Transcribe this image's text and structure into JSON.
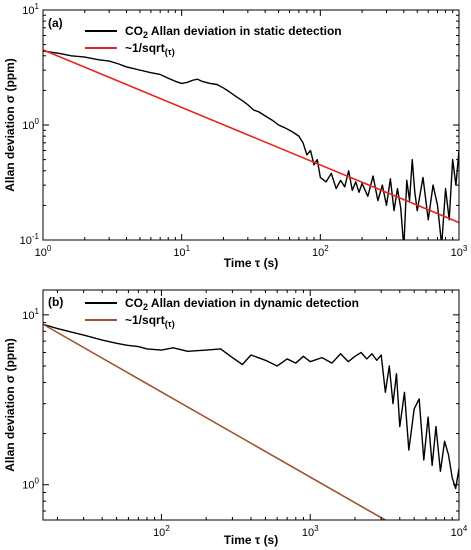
{
  "chart_data": [
    {
      "type": "line",
      "panel_label": "(a)",
      "xlabel": "Time τ (s)",
      "ylabel": "Allan deviation σ (ppm)",
      "xscale": "log",
      "yscale": "log",
      "xlim": [
        1,
        1000
      ],
      "ylim": [
        0.1,
        10
      ],
      "x_major_ticks": [
        {
          "value": 1,
          "base": "10",
          "exp": "0"
        },
        {
          "value": 10,
          "base": "10",
          "exp": "1"
        },
        {
          "value": 100,
          "base": "10",
          "exp": "2"
        },
        {
          "value": 1000,
          "base": "10",
          "exp": "3"
        }
      ],
      "y_major_ticks": [
        {
          "value": 0.1,
          "base": "10",
          "exp": "-1"
        },
        {
          "value": 1,
          "base": "10",
          "exp": "0"
        },
        {
          "value": 10,
          "base": "10",
          "exp": "1"
        }
      ],
      "grid": false,
      "legend_position": "top-right",
      "series": [
        {
          "name": "CO₂ Allan deviation in static detection",
          "legend_parts": {
            "pre": "CO",
            "sub": "2",
            "post": " Allan deviation in static detection"
          },
          "color": "#000000",
          "x": [
            1,
            1.3,
            1.6,
            2,
            2.5,
            3,
            3.5,
            4,
            5,
            6,
            7,
            8,
            9,
            10,
            11,
            12,
            13,
            14,
            16,
            18,
            20,
            22,
            25,
            28,
            30,
            33,
            36,
            40,
            45,
            50,
            55,
            60,
            65,
            70,
            75,
            80,
            85,
            90,
            95,
            100,
            110,
            120,
            130,
            140,
            150,
            160,
            170,
            180,
            190,
            200,
            220,
            240,
            260,
            280,
            300,
            320,
            340,
            360,
            380,
            400,
            420,
            440,
            460,
            480,
            500,
            550,
            600,
            650,
            700,
            750,
            800,
            850,
            900,
            950,
            1000
          ],
          "y": [
            4.4,
            4.2,
            4.0,
            3.9,
            3.7,
            3.6,
            3.4,
            3.2,
            3.0,
            2.85,
            2.75,
            2.55,
            2.4,
            2.3,
            2.35,
            2.45,
            2.5,
            2.4,
            2.3,
            2.25,
            2.1,
            1.95,
            1.75,
            1.6,
            1.5,
            1.35,
            1.3,
            1.2,
            1.1,
            1.0,
            0.95,
            0.9,
            0.85,
            0.8,
            0.7,
            0.55,
            0.6,
            0.45,
            0.5,
            0.35,
            0.32,
            0.38,
            0.28,
            0.33,
            0.29,
            0.4,
            0.27,
            0.32,
            0.26,
            0.31,
            0.24,
            0.36,
            0.22,
            0.3,
            0.2,
            0.34,
            0.18,
            0.28,
            0.19,
            0.085,
            0.33,
            0.22,
            0.5,
            0.26,
            0.18,
            0.35,
            0.15,
            0.3,
            0.2,
            0.09,
            0.28,
            0.15,
            0.5,
            0.3,
            0.6
          ]
        },
        {
          "name": "~1/sqrt(τ)",
          "legend_parts": {
            "pre": "~1/sqrt",
            "sub": "(τ)",
            "post": ""
          },
          "color": "#e8231f",
          "x": [
            1,
            1000
          ],
          "y": [
            4.5,
            0.142
          ]
        }
      ]
    },
    {
      "type": "line",
      "panel_label": "(b)",
      "xlabel": "Time τ (s)",
      "ylabel": "Allan deviation σ (ppm)",
      "xscale": "log",
      "yscale": "log",
      "xlim": [
        16,
        10000
      ],
      "ylim": [
        0.62,
        14
      ],
      "x_major_ticks": [
        {
          "value": 100,
          "base": "10",
          "exp": "2"
        },
        {
          "value": 1000,
          "base": "10",
          "exp": "3"
        },
        {
          "value": 10000,
          "base": "10",
          "exp": "4"
        }
      ],
      "y_major_ticks": [
        {
          "value": 1,
          "base": "10",
          "exp": "0"
        },
        {
          "value": 10,
          "base": "10",
          "exp": "1"
        }
      ],
      "grid": false,
      "legend_position": "top-right",
      "series": [
        {
          "name": "CO₂ Allan deviation in dynamic detection",
          "legend_parts": {
            "pre": "CO",
            "sub": "2",
            "post": " Allan deviation in dynamic detection"
          },
          "color": "#000000",
          "x": [
            16,
            20,
            25,
            30,
            40,
            50,
            60,
            70,
            80,
            100,
            120,
            150,
            200,
            250,
            300,
            350,
            400,
            500,
            600,
            700,
            800,
            900,
            1000,
            1200,
            1400,
            1600,
            1800,
            2000,
            2200,
            2400,
            2600,
            2800,
            3000,
            3200,
            3400,
            3600,
            3800,
            4000,
            4300,
            4600,
            5000,
            5400,
            5800,
            6200,
            6600,
            7000,
            7500,
            8000,
            8500,
            9000,
            9500,
            10000
          ],
          "y": [
            8.8,
            8.3,
            7.9,
            7.6,
            7.1,
            6.8,
            6.6,
            6.5,
            6.3,
            6.2,
            6.4,
            6.1,
            6.2,
            6.3,
            5.6,
            5.1,
            5.8,
            5.4,
            5.0,
            5.5,
            5.2,
            5.7,
            5.3,
            5.6,
            5.2,
            5.9,
            5.3,
            5.7,
            6.0,
            5.5,
            5.9,
            5.4,
            5.8,
            3.5,
            5.0,
            3.0,
            4.5,
            2.2,
            3.5,
            1.6,
            2.8,
            3.2,
            1.4,
            2.5,
            1.3,
            2.2,
            1.2,
            1.8,
            1.5,
            1.1,
            0.95,
            1.25
          ]
        },
        {
          "name": "~1/sqrt(τ)",
          "legend_parts": {
            "pre": "~1/sqrt",
            "sub": "(τ)",
            "post": ""
          },
          "color": "#a0522d",
          "x": [
            16,
            10000
          ],
          "y": [
            8.8,
            0.35
          ]
        }
      ]
    }
  ]
}
